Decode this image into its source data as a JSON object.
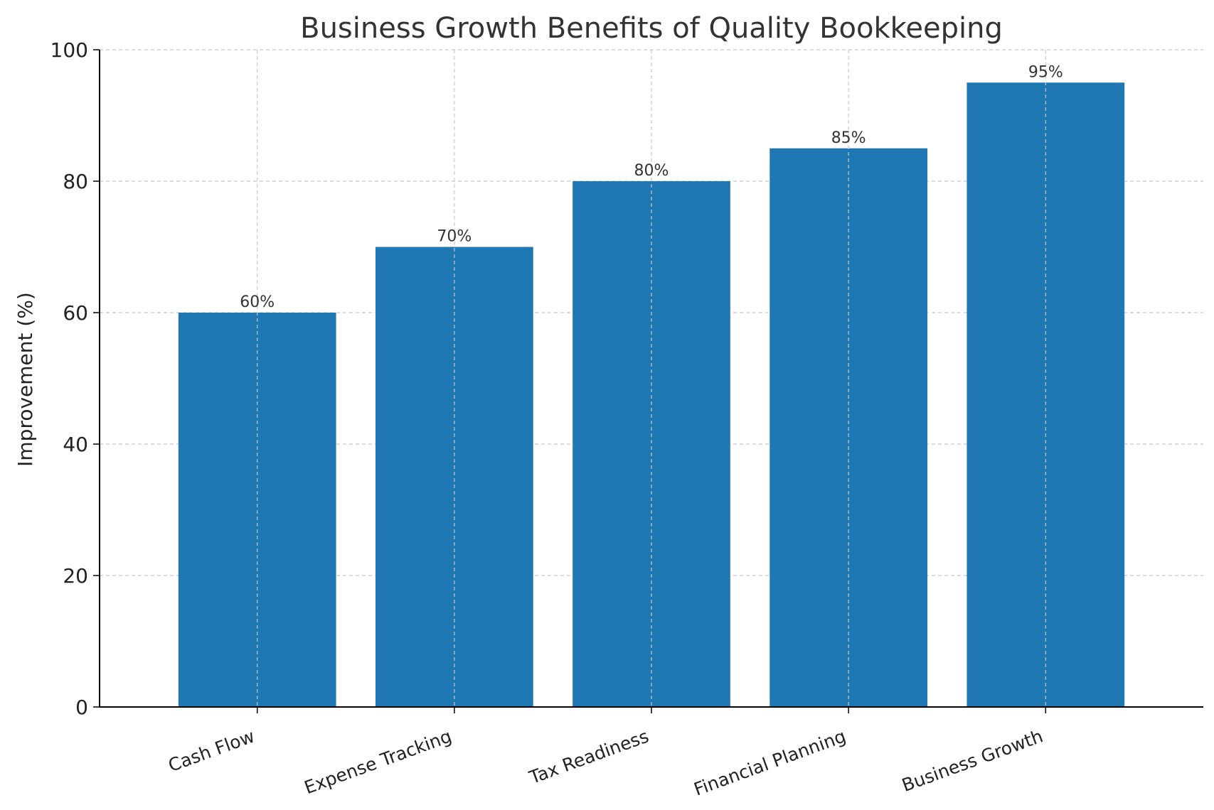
{
  "chart_data": {
    "type": "bar",
    "title": "Business Growth Benefits of Quality Bookkeeping",
    "xlabel": "",
    "ylabel": "Improvement (%)",
    "categories": [
      "Cash Flow",
      "Expense Tracking",
      "Tax Readiness",
      "Financial Planning",
      "Business Growth"
    ],
    "values": [
      60,
      70,
      80,
      85,
      95
    ],
    "value_labels": [
      "60%",
      "70%",
      "80%",
      "85%",
      "95%"
    ],
    "ylim": [
      0,
      100
    ],
    "yticks": [
      0,
      20,
      40,
      60,
      80,
      100
    ],
    "ytick_labels": [
      "0",
      "20",
      "40",
      "60",
      "80",
      "100"
    ],
    "grid": true,
    "x_tick_rotation_deg": -20,
    "colors": {
      "bar": "#1f77b4",
      "grid": "#c8c8c8",
      "axis": "#000000",
      "text": "#333333"
    }
  }
}
